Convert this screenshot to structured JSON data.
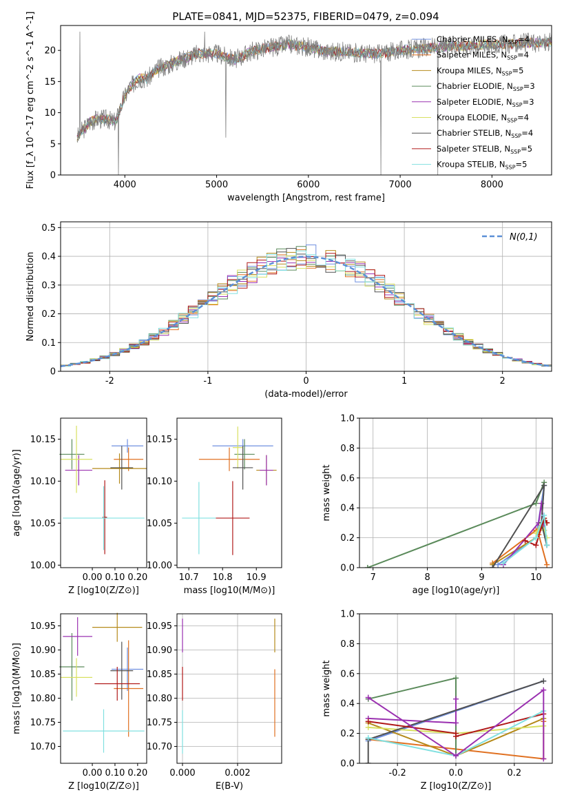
{
  "figure": {
    "title": "PLATE=0841, MJD=52375, FIBERID=0479, z=0.094"
  },
  "models": [
    {
      "name": "Chabrier MILES",
      "nssp": "4",
      "color": "#6f8fdf"
    },
    {
      "name": "Salpeter MILES",
      "nssp": "4",
      "color": "#e07020"
    },
    {
      "name": "Kroupa MILES",
      "nssp": "5",
      "color": "#b58a1a"
    },
    {
      "name": "Chabrier ELODIE",
      "nssp": "3",
      "color": "#5a8a5a"
    },
    {
      "name": "Salpeter ELODIE",
      "nssp": "3",
      "color": "#9a30b0"
    },
    {
      "name": "Kroupa ELODIE",
      "nssp": "4",
      "color": "#d8e060"
    },
    {
      "name": "Chabrier STELIB",
      "nssp": "4",
      "color": "#505050"
    },
    {
      "name": "Salpeter STELIB",
      "nssp": "5",
      "color": "#b01818"
    },
    {
      "name": "Kroupa STELIB",
      "nssp": "5",
      "color": "#80e0e0"
    }
  ],
  "chart_data": [
    {
      "id": "spectrum",
      "type": "line",
      "xlabel": "wavelength [Angstrom, rest frame]",
      "ylabel": "Flux [f_λ 10^-17 erg cm^-2 s^-1 A^-1]",
      "xlim": [
        3300,
        8650
      ],
      "ylim": [
        0,
        24
      ],
      "xticks": [
        4000,
        5000,
        6000,
        7000,
        8000
      ],
      "yticks": [
        0,
        5,
        10,
        15,
        20
      ],
      "data_color": "#808080",
      "continuum": {
        "x": [
          3480,
          3520,
          3560,
          3620,
          3700,
          3800,
          3900,
          3980,
          4050,
          4150,
          4250,
          4350,
          4450,
          4600,
          4800,
          5000,
          5200,
          5400,
          5600,
          5800,
          6000,
          6200,
          6400,
          6600,
          6800,
          7000,
          7200,
          7400,
          7600,
          7800,
          8000,
          8200,
          8400,
          8650
        ],
        "y": [
          6,
          7,
          7.5,
          8.5,
          9,
          9,
          8.5,
          12,
          14,
          15.5,
          15.5,
          17,
          17.5,
          18.5,
          19.5,
          19.5,
          18.5,
          20,
          20.5,
          21,
          20.5,
          19.8,
          19.8,
          19.5,
          19.5,
          20,
          20.3,
          20.5,
          20.7,
          20.8,
          21,
          21,
          21.2,
          21.3
        ]
      },
      "spikes": [
        {
          "x": 3510,
          "y": 23
        },
        {
          "x": 3930,
          "y": 0
        },
        {
          "x": 4870,
          "y": 23
        },
        {
          "x": 5100,
          "y": 6
        },
        {
          "x": 6790,
          "y": 0
        },
        {
          "x": 7410,
          "y": 0
        }
      ],
      "legend_loc": "upper right"
    },
    {
      "id": "residuals",
      "type": "line",
      "xlabel": "(data-model)/error",
      "ylabel": "Normed distribution",
      "xlim": [
        -2.5,
        2.5
      ],
      "ylim": [
        0,
        0.52
      ],
      "xticks": [
        -2,
        -1,
        0,
        1,
        2
      ],
      "yticks": [
        0,
        0.1,
        0.2,
        0.3,
        0.4,
        0.5
      ],
      "reference_label": "N(0,1)",
      "reference_color": "#5b8fd6",
      "bin_width": 0.1,
      "legend_loc": "upper right",
      "grid": true
    },
    {
      "id": "age-vs-Z",
      "type": "scatter",
      "xlabel": "Z [log10(Z/Z⊙)]",
      "ylabel": "age [log10(age/yr)]",
      "xlim": [
        -0.14,
        0.24
      ],
      "ylim": [
        9.997,
        10.175
      ],
      "xticks": [
        -0.05,
        0.05,
        0.15
      ],
      "xtick_labels": [
        "0.00",
        "0.10",
        "0.20"
      ],
      "xtick_values": [
        0.0,
        0.1,
        0.2
      ],
      "yticks": [
        10.0,
        10.05,
        10.1,
        10.15
      ],
      "points": [
        {
          "x": 0.155,
          "xerr": 0.07,
          "y": 10.142,
          "yerr": 0.008
        },
        {
          "x": 0.16,
          "xerr": 0.065,
          "y": 10.126,
          "yerr": 0.014
        },
        {
          "x": 0.12,
          "xerr": 0.12,
          "y": 10.115,
          "yerr": 0.018
        },
        {
          "x": -0.09,
          "xerr": 0.055,
          "y": 10.132,
          "yerr": 0.018
        },
        {
          "x": -0.06,
          "xerr": 0.06,
          "y": 10.113,
          "yerr": 0.018
        },
        {
          "x": -0.07,
          "xerr": 0.07,
          "y": 10.126,
          "yerr": 0.04
        },
        {
          "x": 0.13,
          "xerr": 0.05,
          "y": 10.116,
          "yerr": 0.026
        },
        {
          "x": 0.055,
          "xerr": 0.01,
          "y": 10.057,
          "yerr": 0.044
        },
        {
          "x": 0.05,
          "xerr": 0.18,
          "y": 10.056,
          "yerr": 0.038
        }
      ]
    },
    {
      "id": "age-vs-mass",
      "type": "scatter",
      "xlabel": "mass [log10(M/M⊙)]",
      "ylabel": "",
      "xlim": [
        10.665,
        10.975
      ],
      "ylim": [
        9.997,
        10.175
      ],
      "xticks": [
        10.7,
        10.8,
        10.9
      ],
      "yticks": [
        10.0,
        10.05,
        10.1,
        10.15
      ],
      "points": [
        {
          "x": 10.86,
          "xerr": 0.09,
          "y": 10.142,
          "yerr": 0.008
        },
        {
          "x": 10.82,
          "xerr": 0.09,
          "y": 10.126,
          "yerr": 0.014
        },
        {
          "x": 10.93,
          "xerr": 0.03,
          "y": 10.113,
          "yerr": 0.018
        },
        {
          "x": 10.865,
          "xerr": 0.03,
          "y": 10.132,
          "yerr": 0.018
        },
        {
          "x": 10.93,
          "xerr": 0.02,
          "y": 10.113,
          "yerr": 0.018
        },
        {
          "x": 10.845,
          "xerr": 0.015,
          "y": 10.14,
          "yerr": 0.025
        },
        {
          "x": 10.86,
          "xerr": 0.03,
          "y": 10.116,
          "yerr": 0.026
        },
        {
          "x": 10.83,
          "xerr": 0.05,
          "y": 10.056,
          "yerr": 0.044
        },
        {
          "x": 10.73,
          "xerr": 0.05,
          "y": 10.056,
          "yerr": 0.043
        }
      ]
    },
    {
      "id": "weight-vs-age",
      "type": "line",
      "xlabel": "age [log10(age/yr)]",
      "ylabel": "mass weight",
      "xlim": [
        6.75,
        10.3
      ],
      "ylim": [
        0,
        1
      ],
      "xticks": [
        7,
        8,
        9,
        10
      ],
      "yticks": [
        0,
        0.2,
        0.4,
        0.6,
        0.8,
        1.0
      ],
      "grid": true,
      "series": [
        {
          "model": 0,
          "x": [
            9.3,
            10.0,
            10.15,
            10.1,
            10.2
          ],
          "y": [
            0.02,
            0.2,
            0.55,
            0.3,
            0.15
          ]
        },
        {
          "model": 1,
          "x": [
            9.2,
            10.0,
            10.12,
            10.05,
            10.2
          ],
          "y": [
            0.03,
            0.25,
            0.28,
            0.22,
            0.02
          ]
        },
        {
          "model": 2,
          "x": [
            9.2,
            10.0,
            10.1,
            10.15,
            10.2
          ],
          "y": [
            0.02,
            0.2,
            0.28,
            0.33,
            0.3
          ]
        },
        {
          "model": 3,
          "x": [
            6.9,
            10.0,
            10.15
          ],
          "y": [
            0.0,
            0.43,
            0.57
          ]
        },
        {
          "model": 4,
          "x": [
            9.4,
            10.05,
            10.1,
            10.15
          ],
          "y": [
            0.02,
            0.3,
            0.43,
            0.25
          ]
        },
        {
          "model": 5,
          "x": [
            10.0,
            10.1,
            10.15,
            10.2
          ],
          "y": [
            0.23,
            0.3,
            0.25,
            0.2
          ]
        },
        {
          "model": 6,
          "x": [
            9.2,
            10.15,
            10.1,
            10.2
          ],
          "y": [
            0.0,
            0.55,
            0.3,
            0.15
          ]
        },
        {
          "model": 7,
          "x": [
            9.8,
            10.0,
            10.15,
            10.2
          ],
          "y": [
            0.18,
            0.15,
            0.33,
            0.3
          ]
        },
        {
          "model": 8,
          "x": [
            9.4,
            10.0,
            10.15,
            10.2
          ],
          "y": [
            0.03,
            0.2,
            0.35,
            0.15
          ]
        }
      ]
    },
    {
      "id": "mass-vs-Z",
      "type": "scatter",
      "xlabel": "Z [log10(Z/Z⊙)]",
      "ylabel": "mass [log10(M/M⊙)]",
      "xlim": [
        -0.14,
        0.24
      ],
      "ylim": [
        10.665,
        10.975
      ],
      "xticks": [
        -0.05,
        0.05,
        0.15
      ],
      "xtick_labels": [
        "0.00",
        "0.10",
        "0.20"
      ],
      "xtick_values": [
        0.0,
        0.1,
        0.2
      ],
      "yticks": [
        10.7,
        10.75,
        10.8,
        10.85,
        10.9,
        10.95
      ],
      "points": [
        {
          "x": 0.155,
          "xerr": 0.07,
          "y": 10.86,
          "yerr": 0.045
        },
        {
          "x": 0.16,
          "xerr": 0.065,
          "y": 10.82,
          "yerr": 0.1
        },
        {
          "x": 0.11,
          "xerr": 0.11,
          "y": 10.947,
          "yerr": 0.03
        },
        {
          "x": -0.09,
          "xerr": 0.055,
          "y": 10.865,
          "yerr": 0.07
        },
        {
          "x": -0.065,
          "xerr": 0.065,
          "y": 10.928,
          "yerr": 0.04
        },
        {
          "x": -0.07,
          "xerr": 0.07,
          "y": 10.843,
          "yerr": 0.04
        },
        {
          "x": 0.13,
          "xerr": 0.05,
          "y": 10.857,
          "yerr": 0.06
        },
        {
          "x": 0.11,
          "xerr": 0.1,
          "y": 10.83,
          "yerr": 0.035
        },
        {
          "x": 0.05,
          "xerr": 0.18,
          "y": 10.732,
          "yerr": 0.045
        }
      ]
    },
    {
      "id": "mass-vs-ebv",
      "type": "scatter",
      "xlabel": "E(B-V)",
      "ylabel": "",
      "xlim": [
        -0.0002,
        0.0036
      ],
      "ylim": [
        10.665,
        10.975
      ],
      "xticks": [
        0.0,
        0.002
      ],
      "xtick_labels": [
        "0.000",
        "0.002"
      ],
      "yticks": [
        10.7,
        10.75,
        10.8,
        10.85,
        10.9,
        10.95
      ],
      "grid": true,
      "points": [
        {
          "x": 0.0,
          "y": 10.93,
          "yerr": 0.035,
          "model": 4
        },
        {
          "x": 0.0,
          "y": 10.83,
          "yerr": 0.035,
          "model": 7
        },
        {
          "x": 0.0,
          "y": 10.73,
          "yerr": 0.045,
          "model": 8
        },
        {
          "x": 0.00335,
          "y": 10.93,
          "yerr": 0.035,
          "model": 2
        },
        {
          "x": 0.00335,
          "y": 10.79,
          "yerr": 0.07,
          "model": 1
        }
      ]
    },
    {
      "id": "weight-vs-Z",
      "type": "line",
      "xlabel": "Z [log10(Z/Z⊙)]",
      "ylabel": "mass weight",
      "xlim": [
        -0.33,
        0.33
      ],
      "ylim": [
        0,
        1
      ],
      "xticks": [
        -0.2,
        0.0,
        0.2
      ],
      "yticks": [
        0,
        0.2,
        0.4,
        0.6,
        0.8,
        1.0
      ],
      "grid": true,
      "series": [
        {
          "model": 0,
          "x": [
            -0.3,
            0.3
          ],
          "y": [
            0.15,
            0.55
          ]
        },
        {
          "model": 1,
          "x": [
            -0.3,
            0.3,
            0.3
          ],
          "y": [
            0.16,
            0.03,
            0.28
          ]
        },
        {
          "model": 2,
          "x": [
            -0.3,
            0.0,
            0.3
          ],
          "y": [
            0.27,
            0.05,
            0.3
          ]
        },
        {
          "model": 3,
          "x": [
            -0.3,
            0.0,
            0.0
          ],
          "y": [
            0.43,
            0.57,
            0.05
          ]
        },
        {
          "model": 4,
          "x": [
            -0.3,
            0.0,
            0.0
          ],
          "y": [
            0.3,
            0.27,
            0.43
          ]
        },
        {
          "model": 5,
          "x": [
            -0.3,
            0.0,
            0.3
          ],
          "y": [
            0.24,
            0.2,
            0.25
          ]
        },
        {
          "model": 6,
          "x": [
            -0.3,
            -0.3,
            0.3
          ],
          "y": [
            0.0,
            0.16,
            0.55
          ]
        },
        {
          "model": 7,
          "x": [
            -0.3,
            0.0,
            0.0,
            0.3
          ],
          "y": [
            0.28,
            0.2,
            0.18,
            0.33
          ]
        },
        {
          "model": 8,
          "x": [
            -0.3,
            0.0,
            0.3
          ],
          "y": [
            0.17,
            0.05,
            0.35
          ]
        },
        {
          "model": 4,
          "x": [
            -0.3,
            0.0,
            0.3,
            0.3
          ],
          "y": [
            0.44,
            0.05,
            0.49,
            0.03
          ]
        }
      ]
    }
  ]
}
